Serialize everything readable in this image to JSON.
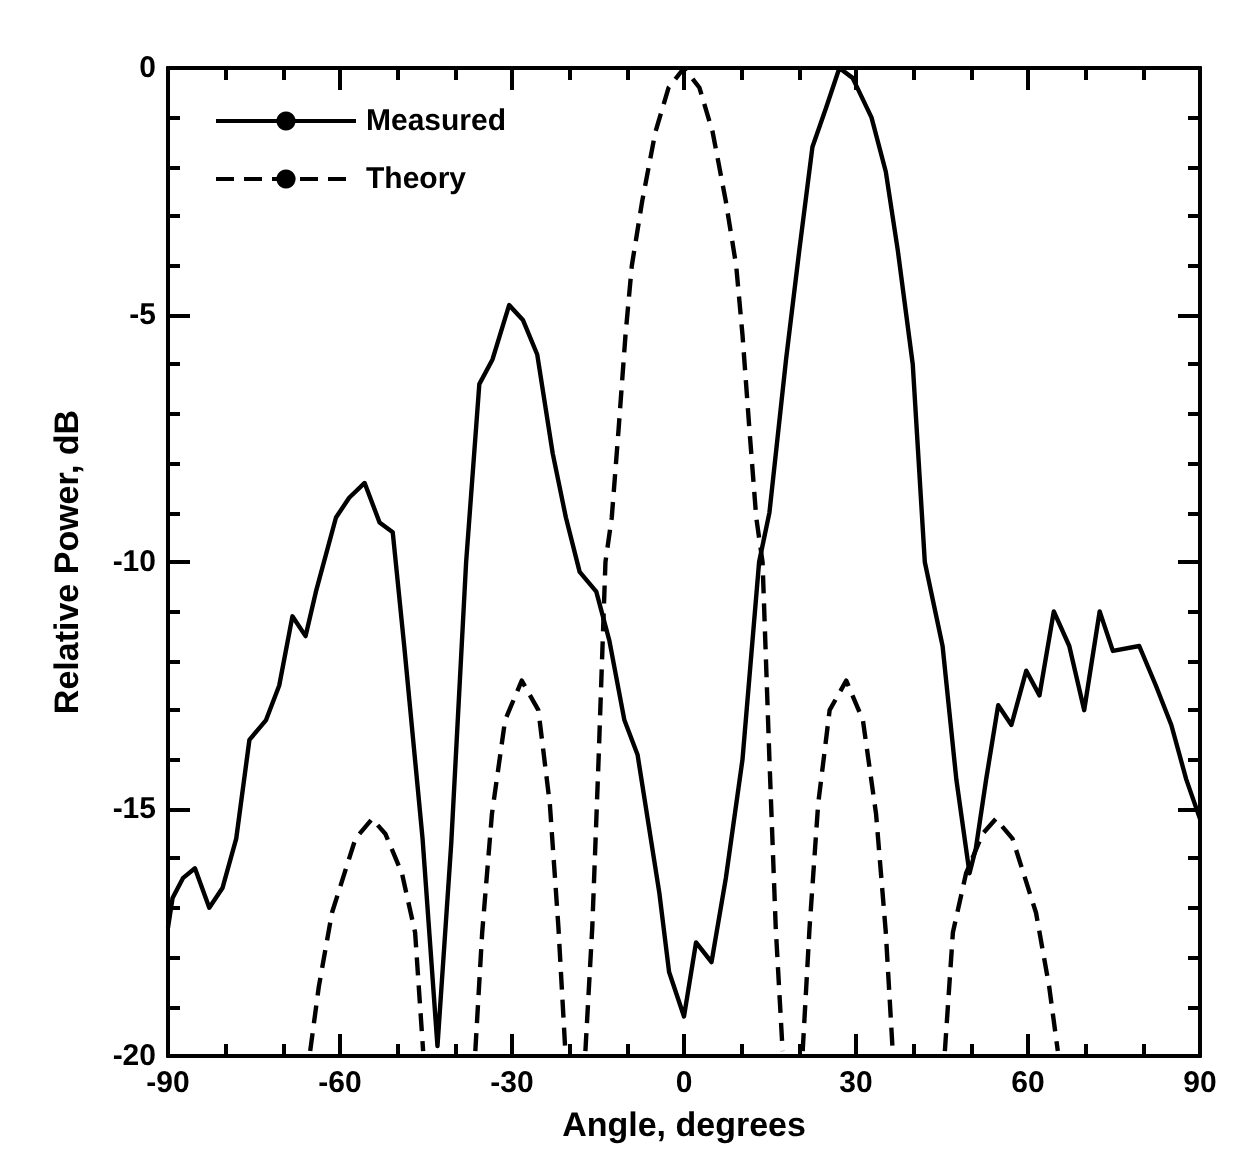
{
  "chart_data": {
    "type": "line",
    "xlabel": "Angle, degrees",
    "ylabel": "Relative Power, dB",
    "xlim": [
      -90,
      90
    ],
    "ylim": [
      -20,
      0
    ],
    "xticks": [
      -90,
      {
        "value": -80,
        "label": null
      },
      {
        "value": -70,
        "label": null
      },
      -60,
      {
        "value": -50,
        "label": null
      },
      {
        "value": -40,
        "label": null
      },
      -30,
      {
        "value": -20,
        "label": null
      },
      {
        "value": -10,
        "label": null
      },
      0,
      {
        "value": 10,
        "label": null
      },
      {
        "value": 20,
        "label": null
      },
      30,
      {
        "value": 40,
        "label": null
      },
      {
        "value": 50,
        "label": null
      },
      60,
      {
        "value": 70,
        "label": null
      },
      {
        "value": 80,
        "label": null
      },
      90
    ],
    "yticks": [
      -20,
      {
        "value": -19,
        "label": null
      },
      {
        "value": -18,
        "label": null
      },
      {
        "value": -17,
        "label": null
      },
      {
        "value": -16,
        "label": null
      },
      -15,
      {
        "value": -14,
        "label": null
      },
      {
        "value": -13,
        "label": null
      },
      {
        "value": -12,
        "label": null
      },
      {
        "value": -11,
        "label": null
      },
      -10,
      {
        "value": -9,
        "label": null
      },
      {
        "value": -8,
        "label": null
      },
      {
        "value": -7,
        "label": null
      },
      {
        "value": -6,
        "label": null
      },
      -5,
      {
        "value": -4,
        "label": null
      },
      {
        "value": -3,
        "label": null
      },
      {
        "value": -2,
        "label": null
      },
      {
        "value": -1,
        "label": null
      },
      0
    ],
    "grid": false,
    "legend": "top left",
    "marker": "none",
    "series": [
      {
        "name": "Measured",
        "color": "#000000",
        "line_style": "solid",
        "x": [
          -90,
          -89.2,
          -87.4,
          -85.3,
          -82.8,
          -80.5,
          -78.1,
          -75.8,
          -72.9,
          -70.6,
          -68.3,
          -66.0,
          -64.2,
          -60.7,
          -58.4,
          -55.7,
          -53.1,
          -50.8,
          -48.8,
          -45.6,
          -43.0,
          -40.6,
          -38.0,
          -35.7,
          -33.4,
          -30.5,
          -28.1,
          -25.6,
          -22.9,
          -20.6,
          -18.2,
          -15.3,
          -13.0,
          -10.4,
          -8.1,
          -4.3,
          -2.6,
          0,
          2.1,
          4.8,
          7.3,
          10.2,
          13.1,
          14.9,
          17.8,
          20.1,
          22.4,
          24.8,
          27.1,
          29.4,
          32.7,
          35.2,
          37.3,
          39.9,
          42.0,
          45.1,
          47.5,
          49.8,
          50.9,
          52.7,
          54.8,
          57.1,
          59.7,
          62.0,
          64.5,
          67.2,
          69.8,
          72.5,
          74.8,
          79.4,
          82.3,
          85.0,
          87.6,
          90
        ],
        "values": [
          -17.4,
          -16.8,
          -16.4,
          -16.2,
          -17.0,
          -16.6,
          -15.6,
          -13.6,
          -13.2,
          -12.5,
          -11.1,
          -11.5,
          -10.6,
          -9.1,
          -8.7,
          -8.4,
          -9.2,
          -9.4,
          -11.7,
          -15.6,
          -19.8,
          -15.7,
          -10.0,
          -6.4,
          -5.9,
          -4.8,
          -5.1,
          -5.8,
          -7.8,
          -9.1,
          -10.2,
          -10.6,
          -11.6,
          -13.2,
          -13.9,
          -16.7,
          -18.3,
          -19.2,
          -17.7,
          -18.1,
          -16.4,
          -14.0,
          -10.0,
          -9.0,
          -5.9,
          -3.7,
          -1.6,
          -0.8,
          0,
          -0.2,
          -1.0,
          -2.1,
          -3.7,
          -6.0,
          -10.0,
          -11.7,
          -14.4,
          -16.3,
          -15.8,
          -14.4,
          -12.9,
          -13.3,
          -12.2,
          -12.7,
          -11.0,
          -11.7,
          -13.0,
          -11.0,
          -11.8,
          -11.7,
          -12.5,
          -13.3,
          -14.4,
          -15.2
        ]
      },
      {
        "name": "Theory",
        "color": "#000000",
        "line_style": "dashed",
        "x": [
          -65.2,
          -63.7,
          -61.4,
          -57.3,
          -54.4,
          -52.1,
          -49.2,
          -46.9,
          -45.5,
          -41,
          -36.4,
          -35.2,
          -33.5,
          -31.2,
          -28.3,
          -25.4,
          -23.4,
          -21.9,
          -20.7,
          -19,
          -17.2,
          -16.0,
          -14.9,
          -13.7,
          -12.6,
          -11.4,
          -10.2,
          -9.1,
          -7.3,
          -5.0,
          -2.7,
          0,
          2.7,
          5.0,
          7.3,
          9.1,
          10.2,
          11.4,
          12.6,
          13.7,
          14.9,
          16.0,
          17.2,
          19,
          20.7,
          21.9,
          23.4,
          25.4,
          28.3,
          31.2,
          33.5,
          35.2,
          36.4,
          41,
          45.5,
          46.9,
          49.2,
          52.1,
          54.4,
          57.3,
          61.4,
          63.7,
          65.2
        ],
        "values": [
          -19.9,
          -18.6,
          -17.1,
          -15.6,
          -15.2,
          -15.5,
          -16.3,
          -17.5,
          -19.9,
          null,
          -19.9,
          -17.5,
          -15.1,
          -13.2,
          -12.4,
          -13.0,
          -14.9,
          -17.4,
          -19.9,
          null,
          -19.9,
          -17.4,
          -14.0,
          -10.0,
          -9.1,
          -7.3,
          -5.4,
          -4.0,
          -2.7,
          -1.3,
          -0.4,
          0,
          -0.4,
          -1.3,
          -2.7,
          -4.0,
          -5.4,
          -7.3,
          -9.1,
          -10.0,
          -14.0,
          -17.4,
          -19.9,
          null,
          -19.9,
          -17.4,
          -14.9,
          -13.0,
          -12.4,
          -13.2,
          -15.1,
          -17.5,
          -19.9,
          null,
          -19.9,
          -17.5,
          -16.3,
          -15.5,
          -15.2,
          -15.6,
          -17.1,
          -18.6,
          -19.9
        ]
      }
    ]
  }
}
